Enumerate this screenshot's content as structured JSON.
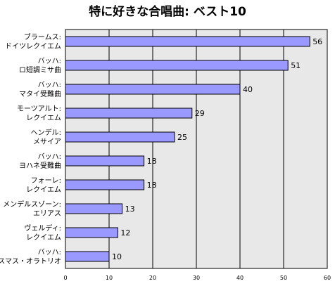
{
  "chart_data": {
    "type": "bar",
    "orientation": "horizontal",
    "title": "特に好きな合唱曲: ベスト10",
    "categories": [
      [
        "ブラームス:",
        "ドイツレクイエム"
      ],
      [
        "バッハ:",
        "ロ短調ミサ曲"
      ],
      [
        "バッハ:",
        "マタイ受難曲"
      ],
      [
        "モーツアルト:",
        "レクイエム"
      ],
      [
        "ヘンデル:",
        "メサイア"
      ],
      [
        "バッハ:",
        "ヨハネ受難曲"
      ],
      [
        "フォーレ:",
        "レクイエム"
      ],
      [
        "メンデルスゾーン:",
        "エリアス"
      ],
      [
        "ヴェルディ:",
        "レクイエム"
      ],
      [
        "バッハ:",
        "クリスマス・オラトリオ"
      ]
    ],
    "values": [
      56,
      51,
      40,
      29,
      25,
      18,
      18,
      13,
      12,
      10
    ],
    "xlim": [
      0,
      60
    ],
    "ticks": [
      "0",
      "10",
      "20",
      "30",
      "40",
      "50",
      "60"
    ],
    "xlabel": "",
    "ylabel": "",
    "grid": true,
    "colors": {
      "bar_fill": "#9999ff",
      "bar_stroke": "#000000",
      "plot_bg": "#e8e8e8",
      "grid": "#000000"
    }
  }
}
